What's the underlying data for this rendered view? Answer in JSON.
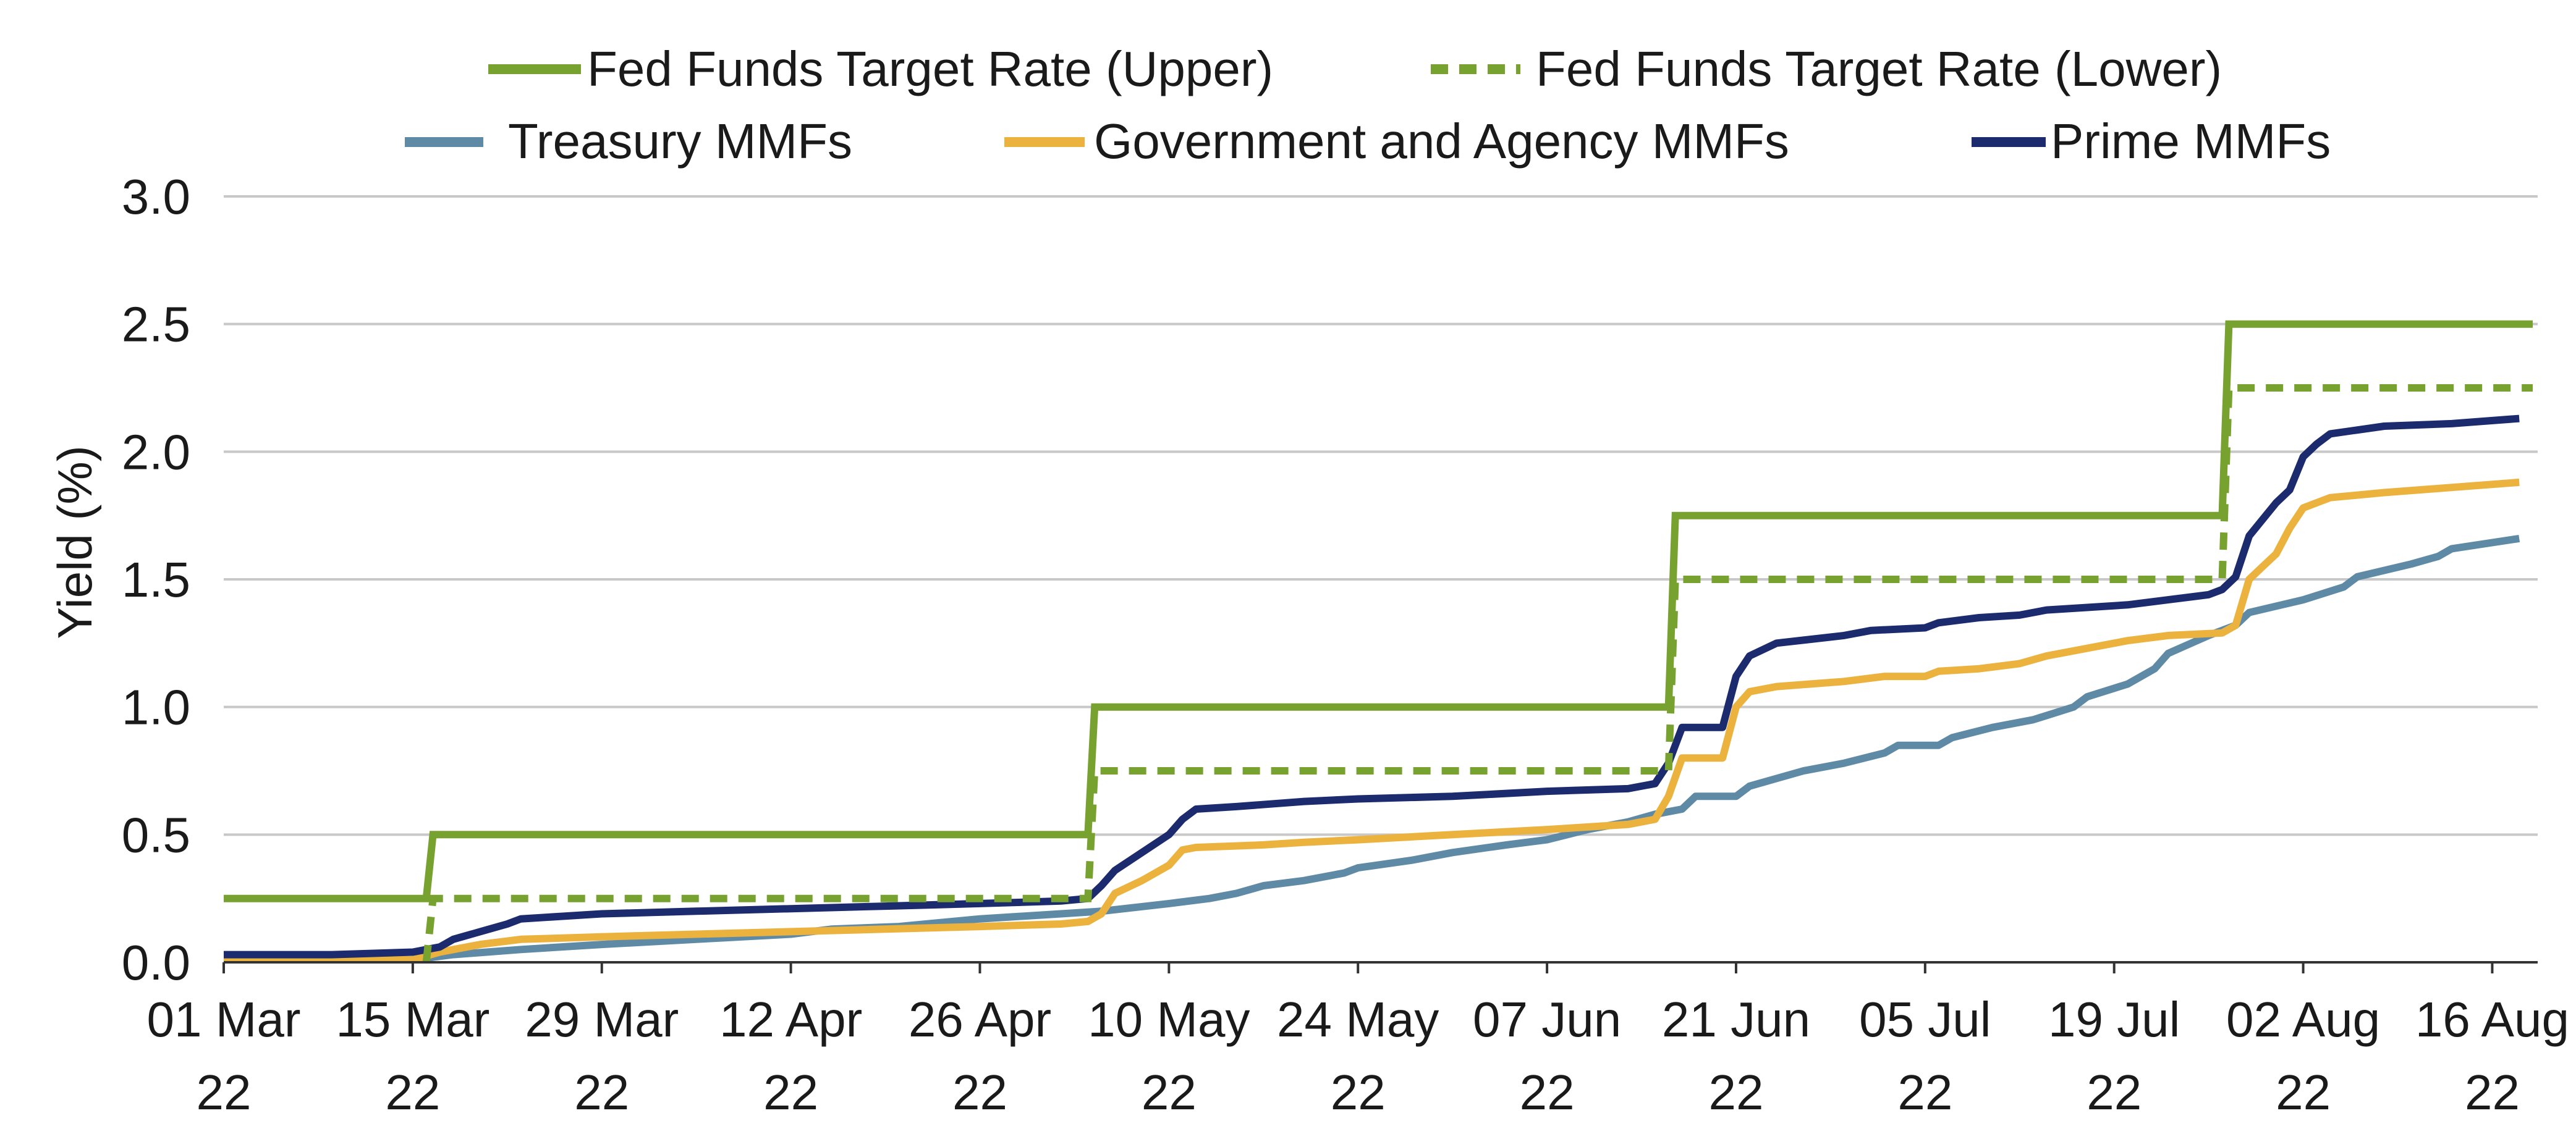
{
  "chart_data": {
    "type": "line",
    "title": "",
    "xlabel": "",
    "ylabel": "Yield (%)",
    "ylim": [
      0,
      3.0
    ],
    "xlim_days": [
      0,
      171
    ],
    "grid": true,
    "legend_position": "top-center",
    "x_ticks": [
      {
        "day": 0,
        "line1": "01 Mar",
        "line2": "22"
      },
      {
        "day": 14,
        "line1": "15 Mar",
        "line2": "22"
      },
      {
        "day": 28,
        "line1": "29 Mar",
        "line2": "22"
      },
      {
        "day": 42,
        "line1": "12 Apr",
        "line2": "22"
      },
      {
        "day": 56,
        "line1": "26 Apr",
        "line2": "22"
      },
      {
        "day": 70,
        "line1": "10 May",
        "line2": "22"
      },
      {
        "day": 84,
        "line1": "24 May",
        "line2": "22"
      },
      {
        "day": 98,
        "line1": "07 Jun",
        "line2": "22"
      },
      {
        "day": 112,
        "line1": "21 Jun",
        "line2": "22"
      },
      {
        "day": 126,
        "line1": "05 Jul",
        "line2": "22"
      },
      {
        "day": 140,
        "line1": "19 Jul",
        "line2": "22"
      },
      {
        "day": 154,
        "line1": "02 Aug",
        "line2": "22"
      },
      {
        "day": 168,
        "line1": "16 Aug",
        "line2": "22"
      }
    ],
    "y_ticks": [
      "0.0",
      "0.5",
      "1.0",
      "1.5",
      "2.0",
      "2.5",
      "3.0"
    ],
    "series": [
      {
        "name": "Fed Funds Target Rate (Upper)",
        "color": "#78a22f",
        "dash": "solid",
        "points": [
          [
            0,
            0.25
          ],
          [
            15,
            0.25
          ],
          [
            15.5,
            0.5
          ],
          [
            64,
            0.5
          ],
          [
            64.5,
            1.0
          ],
          [
            107,
            1.0
          ],
          [
            107.5,
            1.75
          ],
          [
            148,
            1.75
          ],
          [
            148.5,
            2.5
          ],
          [
            171,
            2.5
          ]
        ]
      },
      {
        "name": "Fed Funds Target Rate (Lower)",
        "color": "#78a22f",
        "dash": "dashed",
        "points": [
          [
            15,
            0.0
          ],
          [
            15.5,
            0.25
          ],
          [
            64,
            0.25
          ],
          [
            64.5,
            0.75
          ],
          [
            107,
            0.75
          ],
          [
            107.5,
            1.5
          ],
          [
            148,
            1.5
          ],
          [
            148.5,
            2.25
          ],
          [
            171,
            2.25
          ]
        ]
      },
      {
        "name": "Treasury MMFs",
        "color": "#5f8aa6",
        "dash": "solid",
        "points": [
          [
            0,
            0.01
          ],
          [
            14,
            0.01
          ],
          [
            17,
            0.03
          ],
          [
            22,
            0.05
          ],
          [
            28,
            0.07
          ],
          [
            35,
            0.09
          ],
          [
            42,
            0.11
          ],
          [
            45,
            0.13
          ],
          [
            50,
            0.14
          ],
          [
            56,
            0.17
          ],
          [
            62,
            0.19
          ],
          [
            65,
            0.2
          ],
          [
            70,
            0.23
          ],
          [
            73,
            0.25
          ],
          [
            75,
            0.27
          ],
          [
            77,
            0.3
          ],
          [
            80,
            0.32
          ],
          [
            83,
            0.35
          ],
          [
            84,
            0.37
          ],
          [
            88,
            0.4
          ],
          [
            91,
            0.43
          ],
          [
            95,
            0.46
          ],
          [
            98,
            0.48
          ],
          [
            101,
            0.52
          ],
          [
            104,
            0.55
          ],
          [
            106,
            0.58
          ],
          [
            108,
            0.6
          ],
          [
            109,
            0.65
          ],
          [
            112,
            0.65
          ],
          [
            113,
            0.69
          ],
          [
            115,
            0.72
          ],
          [
            117,
            0.75
          ],
          [
            120,
            0.78
          ],
          [
            123,
            0.82
          ],
          [
            124,
            0.85
          ],
          [
            127,
            0.85
          ],
          [
            128,
            0.88
          ],
          [
            131,
            0.92
          ],
          [
            134,
            0.95
          ],
          [
            137,
            1.0
          ],
          [
            138,
            1.04
          ],
          [
            141,
            1.09
          ],
          [
            143,
            1.15
          ],
          [
            144,
            1.21
          ],
          [
            147,
            1.28
          ],
          [
            149,
            1.32
          ],
          [
            150,
            1.37
          ],
          [
            154,
            1.42
          ],
          [
            157,
            1.47
          ],
          [
            158,
            1.51
          ],
          [
            162,
            1.56
          ],
          [
            164,
            1.59
          ],
          [
            165,
            1.62
          ],
          [
            170,
            1.66
          ]
        ]
      },
      {
        "name": "Government and Agency MMFs",
        "color": "#ebb23e",
        "dash": "solid",
        "points": [
          [
            0,
            0.01
          ],
          [
            14,
            0.01
          ],
          [
            16,
            0.04
          ],
          [
            19,
            0.07
          ],
          [
            22,
            0.09
          ],
          [
            28,
            0.1
          ],
          [
            35,
            0.11
          ],
          [
            42,
            0.12
          ],
          [
            49,
            0.13
          ],
          [
            56,
            0.14
          ],
          [
            62,
            0.15
          ],
          [
            64,
            0.16
          ],
          [
            65,
            0.19
          ],
          [
            66,
            0.27
          ],
          [
            68,
            0.32
          ],
          [
            70,
            0.38
          ],
          [
            71,
            0.44
          ],
          [
            72,
            0.45
          ],
          [
            77,
            0.46
          ],
          [
            80,
            0.47
          ],
          [
            84,
            0.48
          ],
          [
            91,
            0.5
          ],
          [
            98,
            0.52
          ],
          [
            104,
            0.54
          ],
          [
            106,
            0.56
          ],
          [
            107,
            0.65
          ],
          [
            108,
            0.8
          ],
          [
            111,
            0.8
          ],
          [
            112,
            1.0
          ],
          [
            113,
            1.06
          ],
          [
            115,
            1.08
          ],
          [
            120,
            1.1
          ],
          [
            123,
            1.12
          ],
          [
            126,
            1.12
          ],
          [
            127,
            1.14
          ],
          [
            130,
            1.15
          ],
          [
            133,
            1.17
          ],
          [
            135,
            1.2
          ],
          [
            138,
            1.23
          ],
          [
            141,
            1.26
          ],
          [
            144,
            1.28
          ],
          [
            148,
            1.29
          ],
          [
            149,
            1.32
          ],
          [
            150,
            1.5
          ],
          [
            151,
            1.55
          ],
          [
            152,
            1.6
          ],
          [
            153,
            1.7
          ],
          [
            154,
            1.78
          ],
          [
            156,
            1.82
          ],
          [
            160,
            1.84
          ],
          [
            165,
            1.86
          ],
          [
            170,
            1.88
          ]
        ]
      },
      {
        "name": "Prime MMFs",
        "color": "#1c2a6e",
        "dash": "solid",
        "points": [
          [
            0,
            0.03
          ],
          [
            8,
            0.03
          ],
          [
            14,
            0.04
          ],
          [
            16,
            0.06
          ],
          [
            17,
            0.09
          ],
          [
            19,
            0.12
          ],
          [
            21,
            0.15
          ],
          [
            22,
            0.17
          ],
          [
            25,
            0.18
          ],
          [
            28,
            0.19
          ],
          [
            35,
            0.2
          ],
          [
            42,
            0.21
          ],
          [
            49,
            0.22
          ],
          [
            56,
            0.23
          ],
          [
            62,
            0.24
          ],
          [
            64,
            0.25
          ],
          [
            65,
            0.3
          ],
          [
            66,
            0.36
          ],
          [
            68,
            0.43
          ],
          [
            70,
            0.5
          ],
          [
            71,
            0.56
          ],
          [
            72,
            0.6
          ],
          [
            75,
            0.61
          ],
          [
            80,
            0.63
          ],
          [
            84,
            0.64
          ],
          [
            91,
            0.65
          ],
          [
            98,
            0.67
          ],
          [
            104,
            0.68
          ],
          [
            106,
            0.7
          ],
          [
            107,
            0.78
          ],
          [
            108,
            0.92
          ],
          [
            111,
            0.92
          ],
          [
            112,
            1.12
          ],
          [
            113,
            1.2
          ],
          [
            115,
            1.25
          ],
          [
            120,
            1.28
          ],
          [
            122,
            1.3
          ],
          [
            126,
            1.31
          ],
          [
            127,
            1.33
          ],
          [
            130,
            1.35
          ],
          [
            133,
            1.36
          ],
          [
            135,
            1.38
          ],
          [
            138,
            1.39
          ],
          [
            141,
            1.4
          ],
          [
            144,
            1.42
          ],
          [
            147,
            1.44
          ],
          [
            148,
            1.46
          ],
          [
            149,
            1.51
          ],
          [
            150,
            1.67
          ],
          [
            152,
            1.8
          ],
          [
            153,
            1.85
          ],
          [
            154,
            1.98
          ],
          [
            155,
            2.03
          ],
          [
            156,
            2.07
          ],
          [
            160,
            2.1
          ],
          [
            165,
            2.11
          ],
          [
            170,
            2.13
          ]
        ]
      }
    ]
  }
}
